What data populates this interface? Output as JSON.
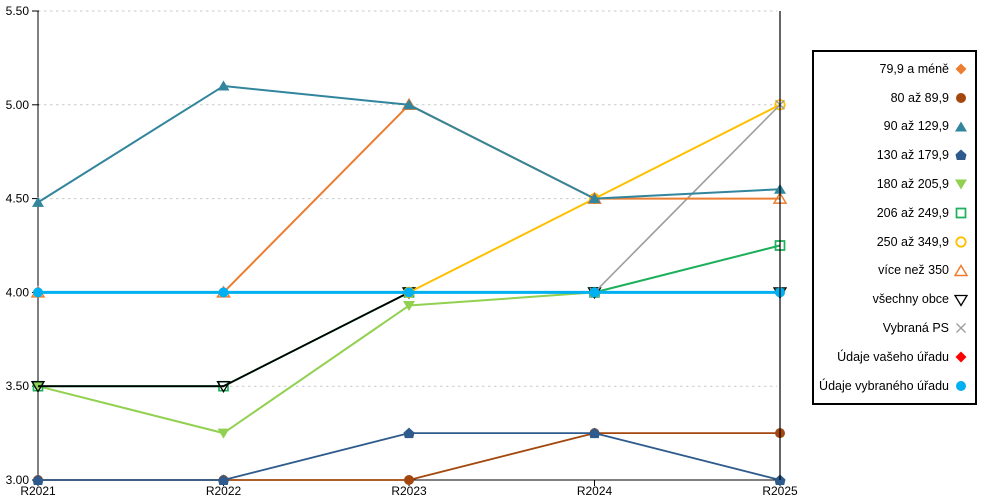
{
  "chart_data": {
    "type": "line",
    "title": "",
    "xlabel": "",
    "ylabel": "",
    "categories": [
      "R2021",
      "R2022",
      "R2023",
      "R2024",
      "R2025"
    ],
    "ylim": [
      3.0,
      5.5
    ],
    "yticks": {
      "values": [
        3.0,
        3.5,
        4.0,
        4.5,
        5.0,
        5.5
      ],
      "labels": [
        "3.00",
        "3.50",
        "4.00",
        "4.50",
        "5.00",
        "5.50"
      ]
    },
    "grid": "horizontal-dotted",
    "gridline_color": "#c9c9c9",
    "axis_color": "#000000",
    "legend_position": "right",
    "vertical_marker_at": "R2025",
    "series": [
      {
        "name": "79,9 a méně",
        "marker": "diamond-filled",
        "color": "#ED7D31",
        "line_width": 2,
        "values": [
          null,
          null,
          null,
          null,
          null
        ]
      },
      {
        "name": "80 až 89,9",
        "marker": "circle-filled",
        "color": "#A3470E",
        "line_width": 1.8,
        "values": [
          3.0,
          3.0,
          3.0,
          3.25,
          3.25
        ]
      },
      {
        "name": "90 až 129,9",
        "marker": "triangle-up-filled",
        "color": "#31859C",
        "line_width": 2,
        "values": [
          4.48,
          5.1,
          5.0,
          4.5,
          4.55
        ]
      },
      {
        "name": "130 až 179,9",
        "marker": "pentagon-filled",
        "color": "#2E5B8C",
        "line_width": 1.8,
        "values": [
          3.0,
          3.0,
          3.25,
          3.25,
          3.0
        ]
      },
      {
        "name": "180 až 205,9",
        "marker": "triangle-down-filled",
        "color": "#92D050",
        "line_width": 2,
        "values": [
          3.5,
          3.25,
          3.93,
          4.0,
          4.0
        ]
      },
      {
        "name": "206 až 249,9",
        "marker": "square-open",
        "color": "#1CB05C",
        "line_width": 2,
        "values": [
          3.5,
          3.5,
          4.0,
          4.0,
          4.25
        ]
      },
      {
        "name": "250 až 349,9",
        "marker": "circle-open",
        "color": "#FFC000",
        "line_width": 2,
        "values": [
          null,
          null,
          4.0,
          4.5,
          5.0
        ]
      },
      {
        "name": "více než 350",
        "marker": "triangle-up-open",
        "color": "#ED7D31",
        "line_width": 2,
        "values": [
          4.0,
          4.0,
          5.0,
          4.5,
          4.5
        ]
      },
      {
        "name": "všechny obce",
        "marker": "triangle-down-open",
        "color": "#000000",
        "line_width": 1.8,
        "values": [
          3.5,
          3.5,
          4.0,
          4.0,
          4.0
        ]
      },
      {
        "name": "Vybraná PS",
        "marker": "x-cross",
        "color": "#9E9E9E",
        "line_width": 1.6,
        "values": [
          null,
          null,
          null,
          4.0,
          5.0
        ]
      },
      {
        "name": "Údaje vašeho úřadu",
        "marker": "diamond-filled",
        "color": "#FF0000",
        "line_width": 2,
        "values": [
          null,
          null,
          null,
          null,
          null
        ]
      },
      {
        "name": "Údaje vybraného úřadu",
        "marker": "circle-filled",
        "color": "#00B0F0",
        "line_width": 3,
        "values": [
          4.0,
          4.0,
          4.0,
          4.0,
          4.0
        ]
      }
    ],
    "draw_order": [
      4,
      5,
      8,
      6,
      9,
      7,
      1,
      3,
      2,
      11,
      0,
      10
    ]
  }
}
